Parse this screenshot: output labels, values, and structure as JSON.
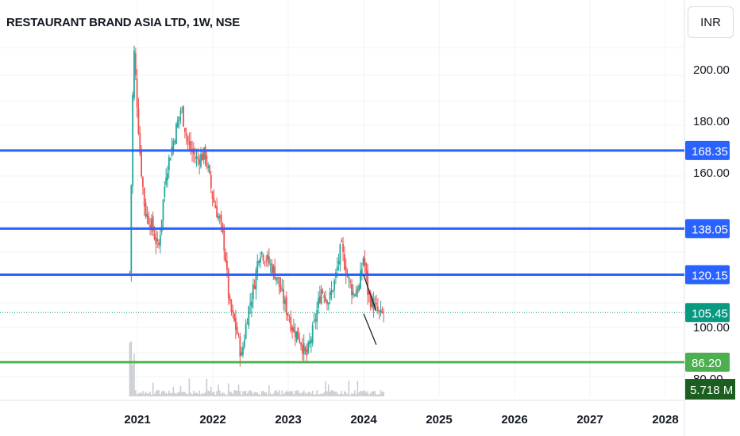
{
  "header": {
    "title": "RESTAURANT BRAND ASIA LTD, 1W, NSE",
    "currency": "INR"
  },
  "colors": {
    "blue_level": "#2962ff",
    "green_level": "#4caf50",
    "up_candle": "#26a69a",
    "down_candle": "#ef5350",
    "price_label": "#089981",
    "volume_label": "#1b5e20",
    "volume_bar": "#b2b5be"
  },
  "chart_data": {
    "type": "candlestick",
    "x_axis": {
      "ticks": [
        "2021",
        "2022",
        "2023",
        "2024",
        "2025",
        "2026",
        "2027",
        "2028"
      ],
      "range": [
        "2020-09",
        "2028-06"
      ]
    },
    "y_axis": {
      "ticks": [
        "200.00",
        "180.00",
        "160.00",
        "100.00",
        "80.00"
      ],
      "range": [
        76,
        223
      ]
    },
    "horizontal_levels": [
      {
        "value": 168.35,
        "label": "168.35",
        "color": "blue"
      },
      {
        "value": 138.05,
        "label": "138.05",
        "color": "blue"
      },
      {
        "value": 120.15,
        "label": "120.15",
        "color": "blue"
      },
      {
        "value": 86.2,
        "label": "86.20",
        "color": "green"
      }
    ],
    "last_price": {
      "value": 105.45,
      "label": "105.45",
      "line": "dotted"
    },
    "volume_label": "5.718 M",
    "trendlines": [
      {
        "from": [
          "2024-01",
          120
        ],
        "to": [
          "2024-03",
          106
        ]
      },
      {
        "from": [
          "2024-01",
          105
        ],
        "to": [
          "2024-03",
          93
        ]
      }
    ],
    "price_path": [
      {
        "t": 2020.9,
        "p": 121
      },
      {
        "t": 2020.95,
        "p": 210
      },
      {
        "t": 2021.0,
        "p": 185
      },
      {
        "t": 2021.04,
        "p": 165
      },
      {
        "t": 2021.1,
        "p": 145
      },
      {
        "t": 2021.18,
        "p": 140
      },
      {
        "t": 2021.28,
        "p": 130
      },
      {
        "t": 2021.38,
        "p": 160
      },
      {
        "t": 2021.5,
        "p": 175
      },
      {
        "t": 2021.58,
        "p": 185
      },
      {
        "t": 2021.68,
        "p": 170
      },
      {
        "t": 2021.78,
        "p": 165
      },
      {
        "t": 2021.9,
        "p": 167
      },
      {
        "t": 2022.0,
        "p": 150
      },
      {
        "t": 2022.1,
        "p": 140
      },
      {
        "t": 2022.16,
        "p": 130
      },
      {
        "t": 2022.22,
        "p": 108
      },
      {
        "t": 2022.32,
        "p": 98
      },
      {
        "t": 2022.38,
        "p": 88
      },
      {
        "t": 2022.46,
        "p": 105
      },
      {
        "t": 2022.54,
        "p": 115
      },
      {
        "t": 2022.62,
        "p": 130
      },
      {
        "t": 2022.72,
        "p": 126
      },
      {
        "t": 2022.84,
        "p": 120
      },
      {
        "t": 2022.94,
        "p": 110
      },
      {
        "t": 2023.05,
        "p": 100
      },
      {
        "t": 2023.16,
        "p": 95
      },
      {
        "t": 2023.24,
        "p": 88
      },
      {
        "t": 2023.34,
        "p": 100
      },
      {
        "t": 2023.44,
        "p": 115
      },
      {
        "t": 2023.54,
        "p": 110
      },
      {
        "t": 2023.62,
        "p": 118
      },
      {
        "t": 2023.7,
        "p": 131
      },
      {
        "t": 2023.78,
        "p": 120
      },
      {
        "t": 2023.86,
        "p": 113
      },
      {
        "t": 2023.94,
        "p": 115
      },
      {
        "t": 2024.0,
        "p": 128
      },
      {
        "t": 2024.06,
        "p": 112
      },
      {
        "t": 2024.14,
        "p": 108
      },
      {
        "t": 2024.22,
        "p": 104
      },
      {
        "t": 2024.26,
        "p": 105.45
      }
    ]
  }
}
